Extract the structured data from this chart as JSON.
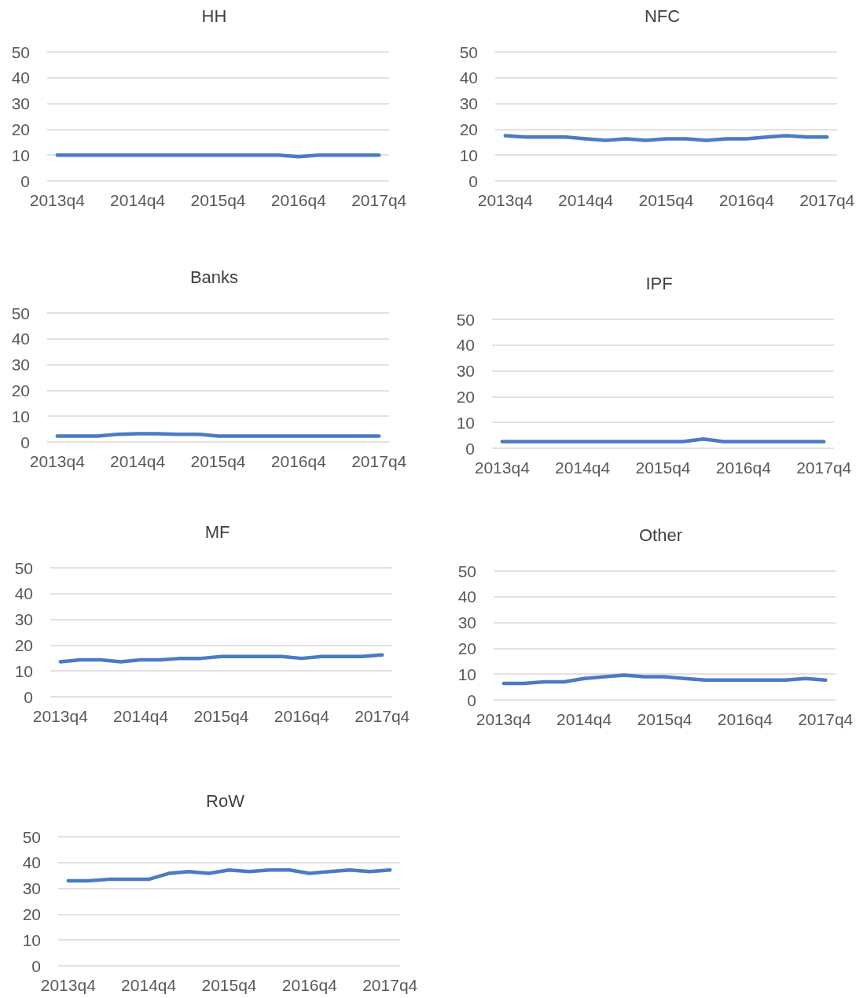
{
  "chart_data": [
    {
      "type": "line",
      "title": "HH",
      "categories": [
        "2013q4",
        null,
        null,
        null,
        "2014q4",
        null,
        null,
        null,
        "2015q4",
        null,
        null,
        null,
        "2016q4",
        null,
        null,
        null,
        "2017q4"
      ],
      "values": [
        10,
        10,
        10,
        10,
        10,
        10,
        10,
        10,
        10,
        10,
        10,
        10,
        9.4,
        10,
        10,
        10,
        10
      ],
      "color": "#4a7bc4",
      "ylim": [
        0,
        50
      ],
      "yticks": [
        0,
        10,
        20,
        30,
        40,
        50
      ],
      "grid": "y"
    },
    {
      "type": "line",
      "title": "NFC",
      "categories": [
        "2013q4",
        null,
        null,
        null,
        "2014q4",
        null,
        null,
        null,
        "2015q4",
        null,
        null,
        null,
        "2016q4",
        null,
        null,
        null,
        "2017q4"
      ],
      "values": [
        17.5,
        17,
        17,
        17,
        16.3,
        15.7,
        16.3,
        15.7,
        16.3,
        16.3,
        15.7,
        16.3,
        16.3,
        17,
        17.5,
        17,
        17
      ],
      "color": "#4a7bc4",
      "ylim": [
        0,
        50
      ],
      "yticks": [
        0,
        10,
        20,
        30,
        40,
        50
      ],
      "grid": "y"
    },
    {
      "type": "line",
      "title": "Banks",
      "categories": [
        "2013q4",
        null,
        null,
        null,
        "2014q4",
        null,
        null,
        null,
        "2015q4",
        null,
        null,
        null,
        "2016q4",
        null,
        null,
        null,
        "2017q4"
      ],
      "values": [
        2.3,
        2.3,
        2.3,
        3,
        3.2,
        3.2,
        3,
        3,
        2.3,
        2.3,
        2.3,
        2.3,
        2.3,
        2.3,
        2.3,
        2.3,
        2.3
      ],
      "color": "#4a7bc4",
      "ylim": [
        0,
        50
      ],
      "yticks": [
        0,
        10,
        20,
        30,
        40,
        50
      ],
      "grid": "y"
    },
    {
      "type": "line",
      "title": "IPF",
      "categories": [
        "2013q4",
        null,
        null,
        null,
        "2014q4",
        null,
        null,
        null,
        "2015q4",
        null,
        null,
        null,
        "2016q4",
        null,
        null,
        null,
        "2017q4"
      ],
      "values": [
        2.6,
        2.6,
        2.6,
        2.6,
        2.6,
        2.6,
        2.6,
        2.6,
        2.6,
        2.6,
        3.6,
        2.6,
        2.6,
        2.6,
        2.6,
        2.6,
        2.6
      ],
      "color": "#4a7bc4",
      "ylim": [
        0,
        50
      ],
      "yticks": [
        0,
        10,
        20,
        30,
        40,
        50
      ],
      "grid": "y"
    },
    {
      "type": "line",
      "title": "MF",
      "categories": [
        "2013q4",
        null,
        null,
        null,
        "2014q4",
        null,
        null,
        null,
        "2015q4",
        null,
        null,
        null,
        "2016q4",
        null,
        null,
        null,
        "2017q4"
      ],
      "values": [
        13.6,
        14.3,
        14.3,
        13.6,
        14.3,
        14.3,
        14.9,
        14.9,
        15.6,
        15.6,
        15.6,
        15.6,
        14.9,
        15.6,
        15.6,
        15.6,
        16.2
      ],
      "color": "#4a7bc4",
      "ylim": [
        0,
        50
      ],
      "yticks": [
        0,
        10,
        20,
        30,
        40,
        50
      ],
      "grid": "y"
    },
    {
      "type": "line",
      "title": "Other",
      "categories": [
        "2013q4",
        null,
        null,
        null,
        "2014q4",
        null,
        null,
        null,
        "2015q4",
        null,
        null,
        null,
        "2016q4",
        null,
        null,
        null,
        "2017q4"
      ],
      "values": [
        6.4,
        6.4,
        7,
        7,
        8.3,
        9,
        9.6,
        9,
        9,
        8.3,
        7.7,
        7.7,
        7.7,
        7.7,
        7.7,
        8.3,
        7.7
      ],
      "color": "#4a7bc4",
      "ylim": [
        0,
        50
      ],
      "yticks": [
        0,
        10,
        20,
        30,
        40,
        50
      ],
      "grid": "y"
    },
    {
      "type": "line",
      "title": "RoW",
      "categories": [
        "2013q4",
        null,
        null,
        null,
        "2014q4",
        null,
        null,
        null,
        "2015q4",
        null,
        null,
        null,
        "2016q4",
        null,
        null,
        null,
        "2017q4"
      ],
      "values": [
        32.9,
        32.9,
        33.5,
        33.5,
        33.5,
        35.8,
        36.5,
        35.8,
        37.1,
        36.5,
        37.1,
        37.1,
        35.8,
        36.5,
        37.1,
        36.5,
        37.1
      ],
      "color": "#4a7bc4",
      "ylim": [
        0,
        50
      ],
      "yticks": [
        0,
        10,
        20,
        30,
        40,
        50
      ],
      "grid": "y"
    }
  ]
}
